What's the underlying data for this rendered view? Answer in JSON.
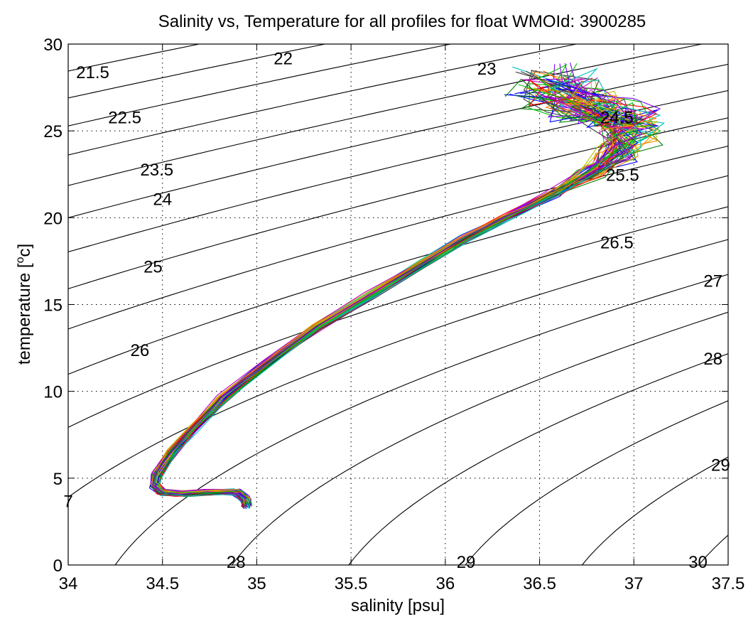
{
  "chart_data": {
    "type": "line",
    "title": "Salinity vs, Temperature for all profiles for float WMOId: 3900285",
    "xlabel": "salinity [psu]",
    "ylabel_main": "temperature [",
    "ylabel_sup": "o",
    "ylabel_end": "c]",
    "xlim": [
      34,
      37.5
    ],
    "ylim": [
      0,
      30
    ],
    "x_ticks": [
      34,
      34.5,
      35,
      35.5,
      36,
      36.5,
      37,
      37.5
    ],
    "x_tick_labels": [
      "34",
      "34.5",
      "35",
      "35.5",
      "36",
      "36.5",
      "37",
      "37.5"
    ],
    "y_ticks": [
      0,
      5,
      10,
      15,
      20,
      25,
      30
    ],
    "y_tick_labels": [
      "0",
      "5",
      "10",
      "15",
      "20",
      "25",
      "30"
    ],
    "grid": true,
    "density_contours": {
      "levels": [
        21.5,
        22,
        22.5,
        23,
        23.5,
        24,
        24.5,
        25,
        25.5,
        26,
        26.5,
        27,
        27.5,
        28,
        28.5,
        29,
        29.5,
        30
      ],
      "labels": [
        {
          "text": "21.5",
          "s": 34.13,
          "t": 28.4
        },
        {
          "text": "22",
          "s": 35.14,
          "t": 29.2
        },
        {
          "text": "22.5",
          "s": 34.3,
          "t": 25.8
        },
        {
          "text": "23",
          "s": 36.22,
          "t": 28.6
        },
        {
          "text": "23.5",
          "s": 34.47,
          "t": 22.8
        },
        {
          "text": "24",
          "s": 34.5,
          "t": 21.1
        },
        {
          "text": "24.5",
          "s": 36.91,
          "t": 25.8
        },
        {
          "text": "25",
          "s": 34.45,
          "t": 17.2
        },
        {
          "text": "25.5",
          "s": 36.94,
          "t": 22.5
        },
        {
          "text": "26",
          "s": 34.38,
          "t": 12.4
        },
        {
          "text": "26.5",
          "s": 36.91,
          "t": 18.6
        },
        {
          "text": "27",
          "s": 37.42,
          "t": 16.4
        },
        {
          "text": "28",
          "s": 37.42,
          "t": 11.9
        },
        {
          "text": "29",
          "s": 37.46,
          "t": 5.8
        },
        {
          "text": "7",
          "s": 34.0,
          "t": 3.7
        },
        {
          "text": "28",
          "s": 34.89,
          "t": 0.0
        },
        {
          "text": "29",
          "s": 36.11,
          "t": 0.0
        },
        {
          "text": "30",
          "s": 37.34,
          "t": 0.0
        }
      ]
    },
    "series_colors": [
      "#0000ff",
      "#008000",
      "#ff0000",
      "#00bfbf",
      "#bf00bf",
      "#bfbf00",
      "#404040",
      "#ff8000",
      "#8000ff",
      "#00c000"
    ],
    "profile_count": 60,
    "mean_profile": [
      [
        34.95,
        3.4
      ],
      [
        34.94,
        3.8
      ],
      [
        34.9,
        4.2
      ],
      [
        34.75,
        4.2
      ],
      [
        34.6,
        4.1
      ],
      [
        34.5,
        4.2
      ],
      [
        34.46,
        4.6
      ],
      [
        34.47,
        5.2
      ],
      [
        34.55,
        6.5
      ],
      [
        34.66,
        7.8
      ],
      [
        34.82,
        9.6
      ],
      [
        35.05,
        11.6
      ],
      [
        35.32,
        13.7
      ],
      [
        35.6,
        15.5
      ],
      [
        35.87,
        17.3
      ],
      [
        36.1,
        18.8
      ],
      [
        36.32,
        20.0
      ],
      [
        36.58,
        21.4
      ],
      [
        36.78,
        22.6
      ],
      [
        36.92,
        23.8
      ],
      [
        37.0,
        24.8
      ],
      [
        36.97,
        25.5
      ],
      [
        36.85,
        26.0
      ],
      [
        36.72,
        26.4
      ],
      [
        36.62,
        27.0
      ],
      [
        36.58,
        27.8
      ]
    ]
  }
}
